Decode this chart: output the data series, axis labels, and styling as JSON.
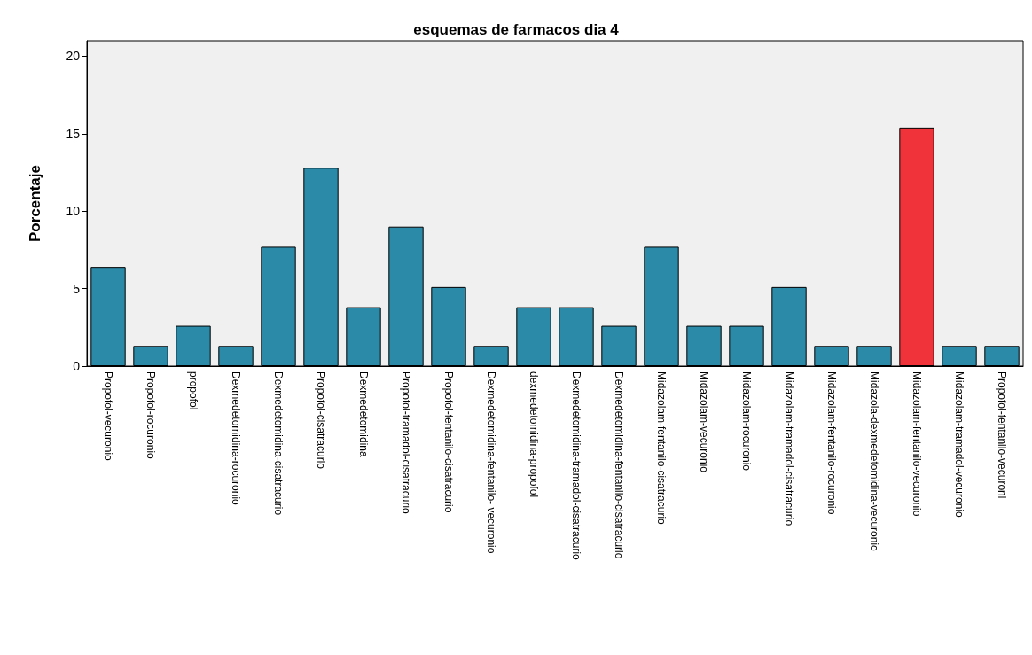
{
  "chart_data": {
    "type": "bar",
    "title": "esquemas de farmacos dia 4",
    "ylabel": "Porcentaje",
    "categories": [
      "Propofol-vecuronio",
      "Propofol-rocuronio",
      "propofol",
      "Dexmedetomidina-rocuronio",
      "Dexmedetomidina-cisatracurio",
      "Propofol-cisatracurio",
      "Dexmedetomidina",
      "Propofol-tramadol-cisatracurio",
      "Propofol-fentanilo-cisatracurio",
      "Dexmedetomidina-fentanilo- vecuronio",
      "dexmedetomidina-propofol",
      "Dexmedetomidina-tramadol-cisatracurio",
      "Dexmedetomidina-fentanilo-cisatracurio",
      "Midazolam-fentanilo-cisatracurio",
      "Midazolam-vecuronio",
      "Midazolam-rocuronio",
      "Midazolam-tramadol-cisatracurio",
      "Midazolam-fentanilo-rocuronio",
      "Midazola-dexmedetomidina-vecuronio",
      "Midazolam-fentanilo-vecuronio",
      "Midazolam-tramadol-vecuronio",
      "Propofol-fentanilo-vecuroni"
    ],
    "values": [
      6.4,
      1.3,
      2.6,
      1.3,
      7.7,
      12.8,
      3.8,
      9.0,
      5.1,
      1.3,
      3.8,
      3.8,
      2.6,
      7.7,
      2.6,
      2.6,
      5.1,
      1.3,
      1.3,
      15.4,
      1.3,
      1.3
    ],
    "colors": [
      "#2b8aa8",
      "#2b8aa8",
      "#2b8aa8",
      "#2b8aa8",
      "#2b8aa8",
      "#2b8aa8",
      "#2b8aa8",
      "#2b8aa8",
      "#2b8aa8",
      "#2b8aa8",
      "#2b8aa8",
      "#2b8aa8",
      "#2b8aa8",
      "#2b8aa8",
      "#2b8aa8",
      "#2b8aa8",
      "#2b8aa8",
      "#2b8aa8",
      "#2b8aa8",
      "#f0323a",
      "#2b8aa8",
      "#2b8aa8"
    ],
    "ylim": [
      0,
      21
    ],
    "yticks": [
      0,
      5,
      10,
      15,
      20
    ],
    "grid": false
  }
}
